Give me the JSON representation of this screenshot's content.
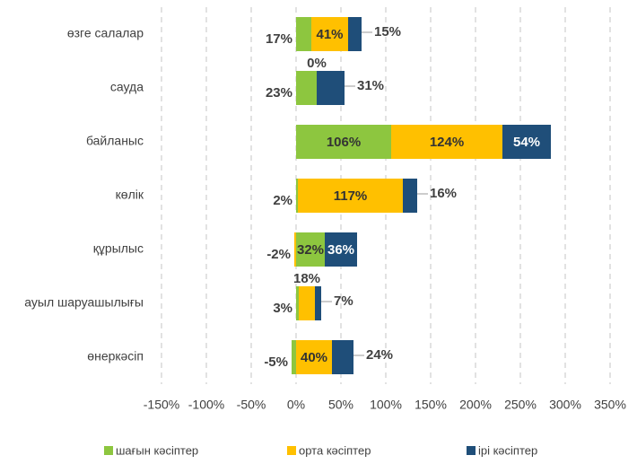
{
  "chart_data": {
    "type": "stacked_bar_horizontal",
    "categories": [
      "өзге салалар",
      "сауда",
      "байланыс",
      "көлік",
      "құрылыс",
      "ауыл шаруашылығы",
      "өнеркәсіп"
    ],
    "series": [
      {
        "name": "шағын кәсіптер",
        "color": "#8dc63f",
        "values": [
          17,
          23,
          106,
          2,
          32,
          3,
          -5
        ],
        "value_labels": [
          "17%",
          "23%",
          "106%",
          "2%",
          "32%",
          "3%",
          "-5%"
        ]
      },
      {
        "name": "орта кәсіптер",
        "color": "#ffc000",
        "values": [
          41,
          0,
          124,
          117,
          -2,
          18,
          40
        ],
        "value_labels": [
          "41%",
          "0%",
          "124%",
          "117%",
          "-2%",
          "18%",
          "40%"
        ]
      },
      {
        "name": "ірі кәсіптер",
        "color": "#1f4e79",
        "values": [
          15,
          31,
          54,
          16,
          36,
          7,
          24
        ],
        "value_labels": [
          "15%",
          "31%",
          "54%",
          "16%",
          "36%",
          "7%",
          "24%"
        ]
      }
    ],
    "xlim": [
      -150,
      350
    ],
    "xticks": [
      {
        "value": -150,
        "label": "-150%"
      },
      {
        "value": -100,
        "label": "-100%"
      },
      {
        "value": -50,
        "label": "-50%"
      },
      {
        "value": 0,
        "label": "0%"
      },
      {
        "value": 50,
        "label": "50%"
      },
      {
        "value": 100,
        "label": "100%"
      },
      {
        "value": 150,
        "label": "150%"
      },
      {
        "value": 200,
        "label": "200%"
      },
      {
        "value": 250,
        "label": "250%"
      },
      {
        "value": 300,
        "label": "300%"
      },
      {
        "value": 350,
        "label": "350%"
      }
    ],
    "grid": true,
    "legend": "bottom"
  }
}
